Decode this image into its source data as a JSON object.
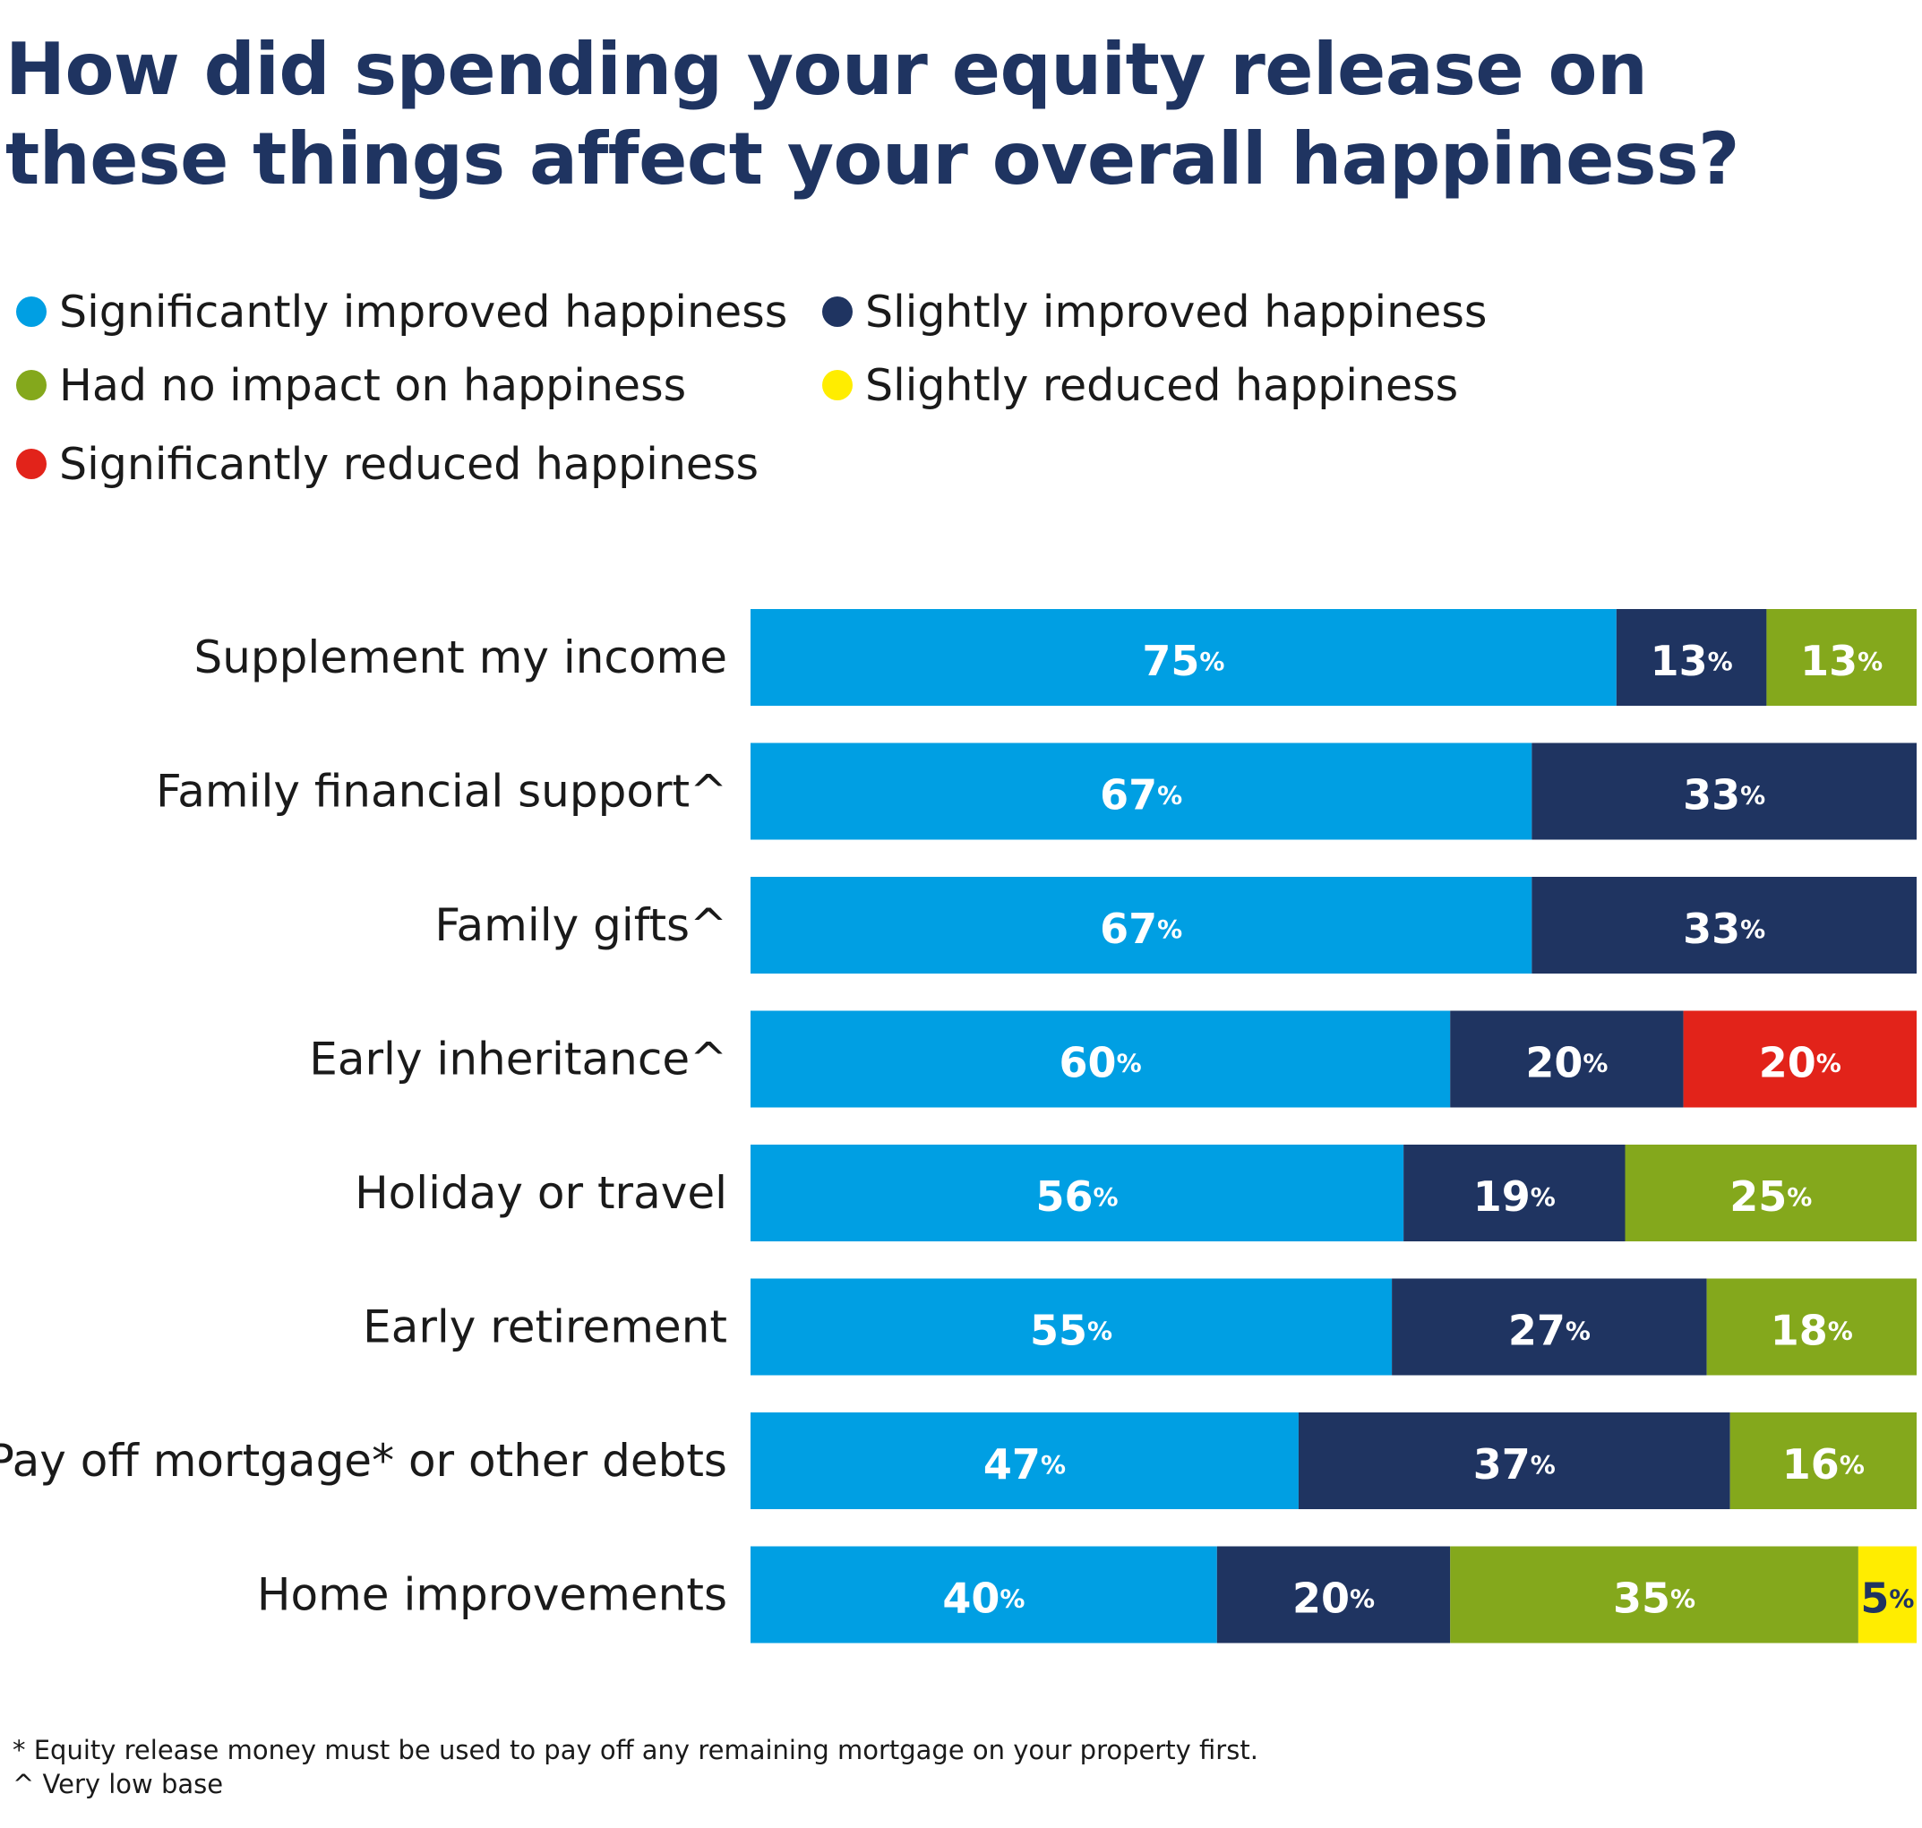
{
  "title_lines": [
    "How did spending your equity release on",
    "these things affect your overall happiness?"
  ],
  "chart_data": {
    "type": "bar",
    "orientation": "horizontal",
    "stacked": true,
    "title": "How did spending your equity release on these things affect your overall happiness?",
    "xlim": [
      0,
      100
    ],
    "value_suffix": "%",
    "legend_placement": "top-left",
    "grid": false,
    "categories": [
      "Supplement my income",
      "Family financial support^",
      "Family gifts^",
      "Early inheritance^",
      "Holiday or travel",
      "Early retirement",
      "Pay off mortgage* or other debts",
      "Home improvements"
    ],
    "series": [
      {
        "name": "Significantly improved happiness",
        "color": "#009fe3",
        "values": [
          75,
          67,
          67,
          60,
          56,
          55,
          47,
          40
        ]
      },
      {
        "name": "Slightly improved happiness",
        "color": "#1f3461",
        "values": [
          13,
          33,
          33,
          20,
          19,
          27,
          37,
          20
        ]
      },
      {
        "name": "Had no impact on happiness",
        "color": "#84a81c",
        "values": [
          13,
          0,
          0,
          0,
          25,
          18,
          16,
          35
        ]
      },
      {
        "name": "Slightly reduced happiness",
        "color": "#ffed00",
        "values": [
          0,
          0,
          0,
          0,
          0,
          0,
          0,
          5
        ]
      },
      {
        "name": "Significantly reduced happiness",
        "color": "#e2231a",
        "values": [
          0,
          0,
          0,
          20,
          0,
          0,
          0,
          0
        ]
      }
    ]
  },
  "legend_order": [
    0,
    1,
    2,
    3,
    4
  ],
  "footnotes": [
    "* Equity release money must be used to pay off any remaining mortgage on your property first.",
    "^ Very low base"
  ]
}
